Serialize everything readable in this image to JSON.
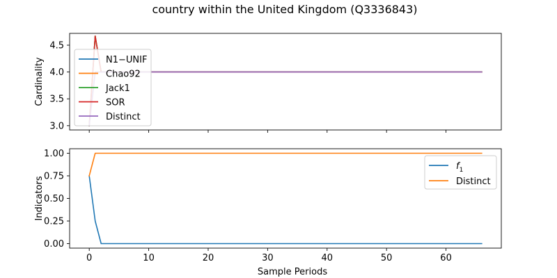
{
  "colors": {
    "blue": "#1f77b4",
    "orange": "#ff7f0e",
    "green": "#2ca02c",
    "red": "#d62728",
    "purple": "#9467bd"
  },
  "chart_data": [
    {
      "type": "line",
      "title": "country within the United Kingdom (Q3336843)",
      "xlabel": "",
      "ylabel": "Cardinality",
      "xlim": [
        -3.3,
        69.3
      ],
      "ylim": [
        2.92,
        4.72
      ],
      "xticks": [
        0,
        10,
        20,
        30,
        40,
        50,
        60
      ],
      "show_xtick_labels": false,
      "yticks": [
        3.0,
        3.5,
        4.0,
        4.5
      ],
      "ytick_labels": [
        "3.0",
        "3.5",
        "4.0",
        "4.5"
      ],
      "legend_position": "upper-left",
      "series": [
        {
          "name": "N1−UNIF",
          "color": "#1f77b4",
          "points": [
            [
              0,
              3.0
            ],
            [
              1,
              4.67
            ],
            [
              2,
              4.0
            ],
            [
              66,
              4.0
            ]
          ]
        },
        {
          "name": "Chao92",
          "color": "#ff7f0e",
          "points": [
            [
              0,
              3.0
            ],
            [
              1,
              4.67
            ],
            [
              2,
              4.0
            ],
            [
              66,
              4.0
            ]
          ]
        },
        {
          "name": "Jack1",
          "color": "#2ca02c",
          "points": [
            [
              0,
              3.0
            ],
            [
              1,
              4.67
            ],
            [
              2,
              4.0
            ],
            [
              66,
              4.0
            ]
          ]
        },
        {
          "name": "SOR",
          "color": "#d62728",
          "points": [
            [
              0,
              3.0
            ],
            [
              1,
              4.67
            ],
            [
              2,
              4.0
            ],
            [
              66,
              4.0
            ]
          ]
        },
        {
          "name": "Distinct",
          "color": "#9467bd",
          "points": [
            [
              0,
              3.0
            ],
            [
              1,
              4.0
            ],
            [
              66,
              4.0
            ]
          ]
        }
      ]
    },
    {
      "type": "line",
      "title": "",
      "xlabel": "Sample Periods",
      "ylabel": "Indicators",
      "xlim": [
        -3.3,
        69.3
      ],
      "ylim": [
        -0.05,
        1.05
      ],
      "xticks": [
        0,
        10,
        20,
        30,
        40,
        50,
        60
      ],
      "xtick_labels": [
        "0",
        "10",
        "20",
        "30",
        "40",
        "50",
        "60"
      ],
      "show_xtick_labels": true,
      "yticks": [
        0.0,
        0.25,
        0.5,
        0.75,
        1.0
      ],
      "ytick_labels": [
        "0.00",
        "0.25",
        "0.50",
        "0.75",
        "1.00"
      ],
      "legend_position": "upper-right",
      "series": [
        {
          "name": "f1",
          "name_base": "f",
          "name_sub": "1",
          "color": "#1f77b4",
          "points": [
            [
              0,
              0.75
            ],
            [
              1,
              0.25
            ],
            [
              2,
              0.0
            ],
            [
              66,
              0.0
            ]
          ]
        },
        {
          "name": "Distinct",
          "color": "#ff7f0e",
          "points": [
            [
              0,
              0.75
            ],
            [
              1,
              1.0
            ],
            [
              66,
              1.0
            ]
          ]
        }
      ]
    }
  ]
}
